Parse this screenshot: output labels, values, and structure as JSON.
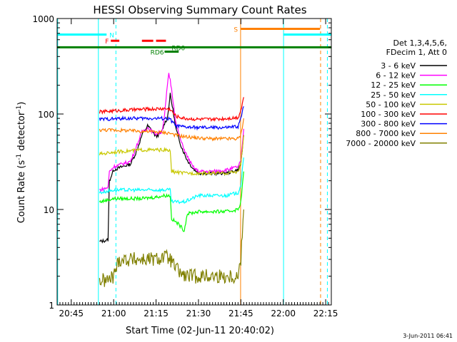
{
  "chart_data": {
    "type": "line",
    "title": "HESSI Observing Summary Count Rates",
    "xlabel": "Start Time (02-Jun-11 20:40:02)",
    "ylabel_main": "Count Rate (s",
    "ylabel_sup1": "-1",
    "ylabel_mid": " detector",
    "ylabel_sup2": "-1",
    "ylabel_end": ")",
    "xlim": [
      40,
      137
    ],
    "ylim": [
      1,
      1000
    ],
    "yscale": "log",
    "x_ticks": [
      {
        "value": 45,
        "label": "20:45"
      },
      {
        "value": 60,
        "label": "21:00"
      },
      {
        "value": 75,
        "label": "21:15"
      },
      {
        "value": 90,
        "label": "21:30"
      },
      {
        "value": 105,
        "label": "21:45"
      },
      {
        "value": 120,
        "label": "22:00"
      },
      {
        "value": 135,
        "label": "22:15"
      }
    ],
    "y_ticks": [
      {
        "value": 1,
        "label": "1"
      },
      {
        "value": 10,
        "label": "10"
      },
      {
        "value": 100,
        "label": "100"
      },
      {
        "value": 1000,
        "label": "1000"
      }
    ],
    "legend": {
      "position": "right",
      "header1": "Det 1,3,4,5,6,",
      "header2": "FDecim 1, Att 0"
    },
    "series": [
      {
        "name": "3 - 6 keV",
        "color": "#000000",
        "points": [
          [
            55,
            4.6
          ],
          [
            58,
            4.8
          ],
          [
            58.5,
            20
          ],
          [
            60,
            26
          ],
          [
            63,
            28
          ],
          [
            66,
            30
          ],
          [
            68,
            40
          ],
          [
            70,
            60
          ],
          [
            72,
            75
          ],
          [
            73,
            70
          ],
          [
            75,
            58
          ],
          [
            77,
            65
          ],
          [
            78,
            80
          ],
          [
            79,
            90
          ],
          [
            80,
            160
          ],
          [
            81,
            110
          ],
          [
            82,
            70
          ],
          [
            84,
            45
          ],
          [
            86,
            33
          ],
          [
            88,
            27
          ],
          [
            90,
            24
          ],
          [
            95,
            24
          ],
          [
            100,
            24
          ],
          [
            104,
            26
          ],
          [
            105,
            30
          ],
          [
            106,
            60
          ]
        ]
      },
      {
        "name": "6 - 12 keV",
        "color": "#ff00ff",
        "points": [
          [
            55,
            16
          ],
          [
            58,
            17
          ],
          [
            58.5,
            25
          ],
          [
            60,
            28
          ],
          [
            63,
            30
          ],
          [
            66,
            32
          ],
          [
            68,
            45
          ],
          [
            70,
            65
          ],
          [
            72,
            72
          ],
          [
            73,
            68
          ],
          [
            75,
            62
          ],
          [
            77,
            65
          ],
          [
            78,
            95
          ],
          [
            79,
            200
          ],
          [
            79.5,
            260
          ],
          [
            80,
            230
          ],
          [
            81,
            140
          ],
          [
            82,
            80
          ],
          [
            84,
            50
          ],
          [
            86,
            36
          ],
          [
            88,
            28
          ],
          [
            90,
            25
          ],
          [
            95,
            25
          ],
          [
            100,
            26
          ],
          [
            104,
            28
          ],
          [
            105,
            32
          ],
          [
            106,
            70
          ]
        ]
      },
      {
        "name": "12 - 25 keV",
        "color": "#00ff00",
        "points": [
          [
            55,
            12
          ],
          [
            60,
            13
          ],
          [
            65,
            13
          ],
          [
            70,
            13
          ],
          [
            75,
            13.5
          ],
          [
            78,
            14
          ],
          [
            80,
            14
          ],
          [
            80.5,
            8
          ],
          [
            83,
            7
          ],
          [
            85,
            6
          ],
          [
            86,
            9
          ],
          [
            90,
            9.5
          ],
          [
            95,
            9.5
          ],
          [
            100,
            9.5
          ],
          [
            104,
            10
          ],
          [
            105,
            12
          ],
          [
            106,
            25
          ]
        ]
      },
      {
        "name": "25 - 50 keV",
        "color": "#00ffff",
        "points": [
          [
            55,
            15
          ],
          [
            60,
            16
          ],
          [
            65,
            16
          ],
          [
            70,
            16
          ],
          [
            75,
            16
          ],
          [
            78,
            16
          ],
          [
            80,
            16
          ],
          [
            80.5,
            12
          ],
          [
            85,
            12
          ],
          [
            90,
            14
          ],
          [
            95,
            14
          ],
          [
            100,
            14
          ],
          [
            104,
            15
          ],
          [
            105,
            18
          ],
          [
            106,
            35
          ]
        ]
      },
      {
        "name": "50 - 100 keV",
        "color": "#c8c800",
        "points": [
          [
            55,
            38
          ],
          [
            60,
            40
          ],
          [
            65,
            41
          ],
          [
            70,
            42
          ],
          [
            75,
            42
          ],
          [
            78,
            42
          ],
          [
            80,
            41
          ],
          [
            80.5,
            25
          ],
          [
            85,
            24
          ],
          [
            90,
            24
          ],
          [
            95,
            24
          ],
          [
            100,
            24
          ],
          [
            104,
            25
          ],
          [
            105,
            30
          ],
          [
            106,
            60
          ]
        ]
      },
      {
        "name": "100 - 300 keV",
        "color": "#ff0000",
        "points": [
          [
            55,
            105
          ],
          [
            60,
            108
          ],
          [
            65,
            110
          ],
          [
            70,
            112
          ],
          [
            75,
            113
          ],
          [
            78,
            114
          ],
          [
            80,
            112
          ],
          [
            82,
            95
          ],
          [
            85,
            90
          ],
          [
            90,
            88
          ],
          [
            95,
            88
          ],
          [
            100,
            90
          ],
          [
            104,
            92
          ],
          [
            105,
            110
          ],
          [
            106,
            150
          ]
        ]
      },
      {
        "name": "300 - 800 keV",
        "color": "#0000ff",
        "points": [
          [
            55,
            88
          ],
          [
            60,
            89
          ],
          [
            65,
            90
          ],
          [
            70,
            90
          ],
          [
            75,
            90
          ],
          [
            78,
            90
          ],
          [
            80,
            88
          ],
          [
            82,
            75
          ],
          [
            85,
            73
          ],
          [
            90,
            72
          ],
          [
            95,
            72
          ],
          [
            100,
            72
          ],
          [
            104,
            74
          ],
          [
            105,
            90
          ],
          [
            106,
            120
          ]
        ]
      },
      {
        "name": "800 - 7000 keV",
        "color": "#ff8000",
        "points": [
          [
            55,
            68
          ],
          [
            60,
            68
          ],
          [
            65,
            67
          ],
          [
            70,
            66
          ],
          [
            75,
            65
          ],
          [
            78,
            64
          ],
          [
            80,
            63
          ],
          [
            82,
            60
          ],
          [
            85,
            58
          ],
          [
            90,
            56
          ],
          [
            95,
            55
          ],
          [
            100,
            55
          ],
          [
            104,
            55
          ],
          [
            105,
            60
          ],
          [
            106,
            90
          ]
        ]
      },
      {
        "name": "7000 - 20000 keV",
        "color": "#808000",
        "points": [
          [
            55,
            1.8
          ],
          [
            58,
            1.8
          ],
          [
            60,
            2.0
          ],
          [
            61,
            2.5
          ],
          [
            62,
            3.0
          ],
          [
            65,
            3.0
          ],
          [
            70,
            3.0
          ],
          [
            75,
            3.0
          ],
          [
            78,
            3.2
          ],
          [
            80,
            3.0
          ],
          [
            82,
            2.4
          ],
          [
            85,
            2.0
          ],
          [
            88,
            2.0
          ],
          [
            90,
            2.0
          ],
          [
            95,
            2.0
          ],
          [
            100,
            2.0
          ],
          [
            104,
            2.0
          ],
          [
            105,
            3.0
          ],
          [
            106,
            10
          ]
        ]
      }
    ],
    "flags": [
      {
        "label": "N",
        "color": "#00ffff",
        "y_value": 680,
        "segments": [
          [
            40,
            57.5
          ],
          [
            120,
            137
          ]
        ],
        "label_x": 58.5
      },
      {
        "label": "S",
        "color": "#ff8000",
        "y_value": 780,
        "segments": [
          [
            105,
            133
          ]
        ],
        "label_x": 102.5
      },
      {
        "label": "F",
        "color": "#ff0000",
        "y_value": 585,
        "segments": [
          [
            59,
            62
          ],
          [
            70,
            74
          ],
          [
            75,
            78.5
          ]
        ],
        "label_x": 57
      },
      {
        "label": "RD0",
        "color": "#008000",
        "y_value": 500,
        "segments": [
          [
            40,
            137
          ]
        ],
        "label_x": 80.5
      },
      {
        "label": "RD6",
        "color": "#008000",
        "y_value": 450,
        "segments": [
          [
            78,
            83
          ]
        ],
        "label_x": 73
      }
    ],
    "vlines": [
      {
        "x": 40.2,
        "color": "#00ffff",
        "style": "solid"
      },
      {
        "x": 54.6,
        "color": "#00ffff",
        "style": "solid"
      },
      {
        "x": 60.8,
        "color": "#00ffff",
        "style": "dashed"
      },
      {
        "x": 104.9,
        "color": "#ff8000",
        "style": "solid"
      },
      {
        "x": 120.1,
        "color": "#00ffff",
        "style": "solid"
      },
      {
        "x": 133.2,
        "color": "#ff8000",
        "style": "dashed"
      },
      {
        "x": 135.6,
        "color": "#00ffff",
        "style": "dashed"
      }
    ],
    "timestamp": "3-Jun-2011 06:41"
  }
}
